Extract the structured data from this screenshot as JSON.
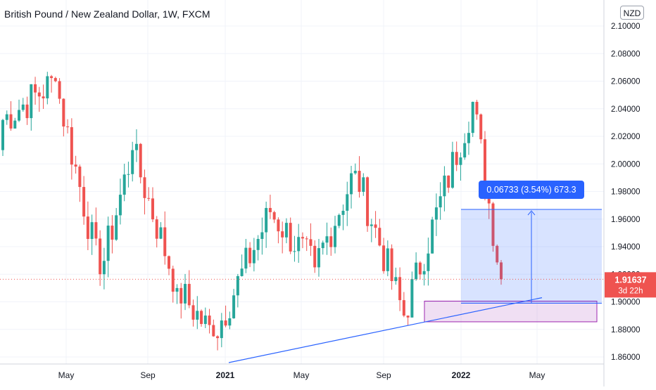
{
  "header": {
    "title": "British Pound / New Zealand Dollar, 1W, FXCM",
    "currency": "NZD"
  },
  "price_tag": {
    "price": "1.91637",
    "countdown": "3d 22h",
    "color": "#ef5350"
  },
  "measure": {
    "label": "0.06733 (3.54%) 673.3",
    "color": "#2962ff"
  },
  "colors": {
    "up": "#26a69a",
    "down": "#ef5350",
    "grid": "#f0f3fa",
    "trendline": "#2962ff",
    "demand_zone": "#9c27b0"
  },
  "chart_data": {
    "type": "candlestick",
    "title": "British Pound / New Zealand Dollar, 1W, FXCM",
    "ylabel": "NZD",
    "ylim": [
      1.855,
      2.115
    ],
    "y_ticks": [
      "2.10000",
      "2.08000",
      "2.06000",
      "2.04000",
      "2.02000",
      "2.00000",
      "1.98000",
      "1.96000",
      "1.94000",
      "1.92000",
      "1.90000",
      "1.88000",
      "1.86000"
    ],
    "x_ticks": [
      "May",
      "Sep",
      "2021",
      "May",
      "Sep",
      "2022",
      "May"
    ],
    "last_price": 1.91637,
    "series": [
      {
        "segment": "Jan-Apr 2020",
        "from": 2.03,
        "to": 2.06
      },
      {
        "segment": "Apr-Jun 2020",
        "from": 2.06,
        "to": 1.92
      },
      {
        "segment": "Jun-Jul 2020",
        "from": 1.92,
        "to": 2.01
      },
      {
        "segment": "Jul-Oct 2020",
        "from": 2.01,
        "to": 1.91
      },
      {
        "segment": "Oct-Dec 2020",
        "from": 1.91,
        "to": 1.875
      },
      {
        "segment": "Dec 2020-Mar 2021",
        "from": 1.875,
        "to": 1.965
      },
      {
        "segment": "Mar-Jun 2021",
        "from": 1.965,
        "to": 1.925
      },
      {
        "segment": "Jun-Aug 2021",
        "from": 1.925,
        "to": 1.995
      },
      {
        "segment": "Aug-Oct 2021",
        "from": 1.995,
        "to": 1.89
      },
      {
        "segment": "Oct 2021-Feb 2022",
        "from": 1.89,
        "to": 2.045
      },
      {
        "segment": "Feb-Mar 2022",
        "from": 2.045,
        "to": 1.91637
      }
    ],
    "annotations": [
      {
        "type": "rising-trendline",
        "from": {
          "x": "Jan 2021",
          "y": 1.857
        },
        "to": {
          "x": "Apr 2022",
          "y": 1.903
        }
      },
      {
        "type": "demand-zone",
        "y_range": [
          1.8855,
          1.9005
        ],
        "x_range": [
          "Nov 2021",
          "Jul 2022"
        ]
      },
      {
        "type": "measure",
        "y_range": [
          1.899,
          1.967
        ],
        "x_range": [
          "Jan 2022",
          "Jul 2022"
        ],
        "label": "0.06733 (3.54%) 673.3"
      }
    ]
  }
}
